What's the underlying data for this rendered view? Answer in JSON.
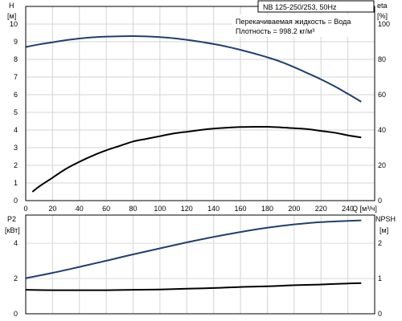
{
  "chart_data": [
    {
      "type": "line",
      "title": "NB 125-250/253, 50Hz",
      "annotations": [
        "Перекачиваемая жидкость = Вода",
        "Плотность = 998.2 кг/м³"
      ],
      "xlabel": "Q [м³/ч]",
      "xlim": [
        0,
        260
      ],
      "x_ticks": [
        0,
        20,
        40,
        60,
        80,
        100,
        120,
        140,
        160,
        180,
        200,
        220,
        240
      ],
      "y_left": {
        "label": "H",
        "unit": "[м]",
        "lim": [
          0,
          11
        ],
        "ticks": [
          0,
          1,
          2,
          3,
          4,
          5,
          6,
          7,
          8,
          9,
          10
        ]
      },
      "y_right": {
        "label": "eta",
        "unit": "[%]",
        "lim": [
          0,
          110
        ],
        "ticks": [
          0,
          20,
          40,
          60,
          80,
          100
        ]
      },
      "grid": true,
      "series": [
        {
          "axis": "left",
          "color": "#1f3f6f",
          "x": [
            0,
            10,
            20,
            30,
            40,
            50,
            60,
            70,
            80,
            90,
            100,
            110,
            120,
            130,
            140,
            150,
            160,
            170,
            180,
            190,
            200,
            210,
            220,
            230,
            240,
            250
          ],
          "y": [
            8.7,
            8.85,
            8.97,
            9.09,
            9.18,
            9.25,
            9.29,
            9.31,
            9.32,
            9.3,
            9.26,
            9.2,
            9.11,
            9.0,
            8.87,
            8.72,
            8.54,
            8.34,
            8.12,
            7.87,
            7.56,
            7.22,
            6.87,
            6.48,
            6.05,
            5.6
          ]
        },
        {
          "axis": "right",
          "color": "#000000",
          "x": [
            5,
            10,
            20,
            30,
            40,
            50,
            60,
            70,
            80,
            90,
            100,
            110,
            120,
            130,
            140,
            150,
            160,
            170,
            180,
            190,
            200,
            210,
            220,
            230,
            240,
            250
          ],
          "y": [
            5,
            8,
            13,
            18,
            22,
            25.5,
            28.5,
            31,
            33.5,
            35,
            36.5,
            38,
            39,
            40,
            40.8,
            41.3,
            41.7,
            41.8,
            41.8,
            41.5,
            41,
            40.5,
            39.5,
            38.5,
            37,
            35.8
          ]
        }
      ]
    },
    {
      "type": "line",
      "xlim": [
        0,
        260
      ],
      "y_left": {
        "label": "P2",
        "unit": "[кВт]",
        "lim": [
          0,
          5.6
        ],
        "ticks": [
          0,
          2,
          4
        ]
      },
      "y_right": {
        "label": "NPSH",
        "unit": "[м]",
        "lim": [
          0,
          2.8
        ],
        "ticks": [
          0,
          1,
          2
        ]
      },
      "grid": true,
      "series": [
        {
          "axis": "left",
          "color": "#1f3f6f",
          "x": [
            0,
            20,
            40,
            60,
            80,
            100,
            120,
            140,
            160,
            180,
            200,
            220,
            240,
            250
          ],
          "y": [
            2.02,
            2.32,
            2.66,
            3.01,
            3.37,
            3.71,
            4.05,
            4.36,
            4.64,
            4.88,
            5.07,
            5.2,
            5.27,
            5.3
          ]
        },
        {
          "axis": "right",
          "color": "#000000",
          "x": [
            0,
            20,
            40,
            60,
            80,
            100,
            120,
            140,
            160,
            180,
            200,
            220,
            240,
            250
          ],
          "y": [
            0.68,
            0.67,
            0.67,
            0.67,
            0.68,
            0.69,
            0.71,
            0.73,
            0.76,
            0.78,
            0.81,
            0.83,
            0.86,
            0.87
          ]
        }
      ]
    }
  ]
}
